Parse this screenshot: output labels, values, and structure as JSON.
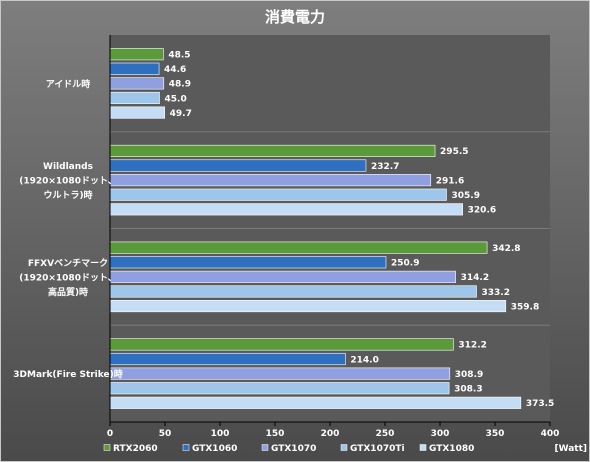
{
  "chart_data": {
    "type": "bar",
    "orientation": "horizontal",
    "title": "消費電力",
    "unit": "[Watt]",
    "xlim": [
      0,
      400
    ],
    "xticks": [
      0,
      50,
      100,
      150,
      200,
      250,
      300,
      350,
      400
    ],
    "grid": false,
    "legend_position": "bottom",
    "categories": [
      {
        "lines": [
          "アイドル時"
        ]
      },
      {
        "lines": [
          "Wildlands",
          "(1920×1080ドット、",
          "ウルトラ)時"
        ]
      },
      {
        "lines": [
          "FFXVベンチマーク",
          "(1920×1080ドット、",
          "高品質)時"
        ]
      },
      {
        "lines": [
          "3DMark(Fire Strike)時"
        ]
      }
    ],
    "series": [
      {
        "name": "RTX2060",
        "color": "#5a9a3a",
        "values": [
          48.5,
          295.5,
          342.8,
          312.2
        ],
        "labels": [
          "48.5",
          "295.5",
          "342.8",
          "312.2"
        ]
      },
      {
        "name": "GTX1060",
        "color": "#2e6fbf",
        "values": [
          44.6,
          232.7,
          250.9,
          214.0
        ],
        "labels": [
          "44.6",
          "232.7",
          "250.9",
          "214.0"
        ]
      },
      {
        "name": "GTX1070",
        "color": "#8f9fe0",
        "values": [
          48.9,
          291.6,
          314.2,
          308.9
        ],
        "labels": [
          "48.9",
          "291.6",
          "314.2",
          "308.9"
        ]
      },
      {
        "name": "GTX1070Ti",
        "color": "#9ec5ea",
        "values": [
          45.0,
          305.9,
          333.2,
          308.3
        ],
        "labels": [
          "45.0",
          "305.9",
          "333.2",
          "308.3"
        ]
      },
      {
        "name": "GTX1080",
        "color": "#c4ddf5",
        "values": [
          49.7,
          320.6,
          359.8,
          373.5
        ],
        "labels": [
          "49.7",
          "320.6",
          "359.8",
          "373.5"
        ]
      }
    ]
  }
}
